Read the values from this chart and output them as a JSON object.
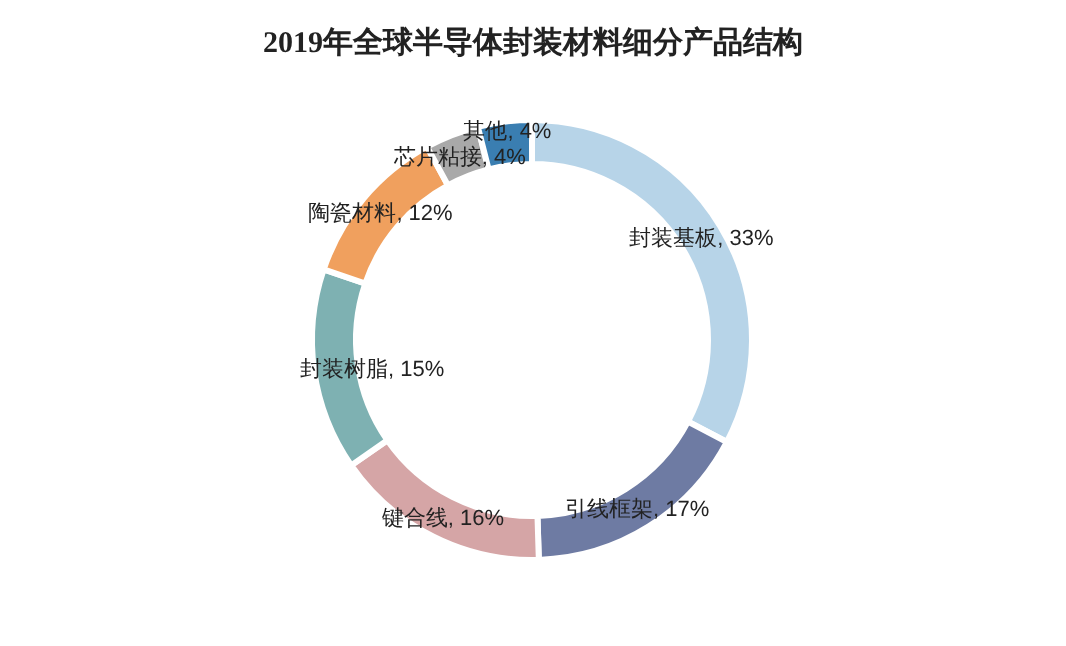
{
  "chart_data": {
    "type": "donut",
    "title": "2019年全球半导体封装材料细分产品结构",
    "categories": [
      "封装基板",
      "引线框架",
      "键合线",
      "封装树脂",
      "陶瓷材料",
      "芯片粘接",
      "其他"
    ],
    "values": [
      33,
      17,
      16,
      15,
      12,
      4,
      4
    ],
    "colors": [
      "#b7d4e8",
      "#6e7ba3",
      "#d5a5a6",
      "#7eb1b2",
      "#f0a05e",
      "#a9a9a9",
      "#3a7eb1"
    ],
    "value_labels": [
      ", 33%",
      ", 17%",
      ", 16%",
      ", 15%",
      ", 12%",
      ", 4%",
      ", 4%"
    ]
  }
}
